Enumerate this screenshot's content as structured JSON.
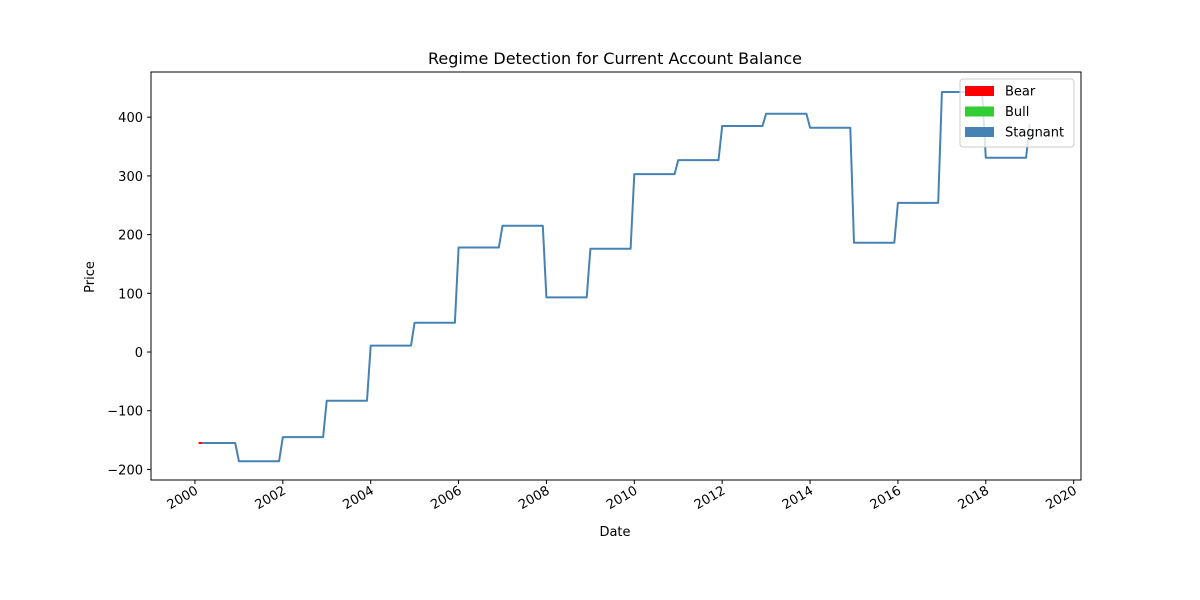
{
  "chart_data": {
    "type": "line",
    "title": "Regime Detection for Current Account Balance",
    "xlabel": "Date",
    "ylabel": "Price",
    "x_ticks": [
      "2000",
      "2002",
      "2004",
      "2006",
      "2008",
      "2010",
      "2012",
      "2014",
      "2016",
      "2018",
      "2020"
    ],
    "y_ticks": [
      -200,
      -100,
      0,
      100,
      200,
      300,
      400
    ],
    "xlim": [
      "1999-01",
      "2020-03"
    ],
    "ylim": [
      -218,
      477
    ],
    "grid": false,
    "legend_placement": "top-right",
    "legend": [
      {
        "name": "Bear",
        "color": "#ff0000"
      },
      {
        "name": "Bull",
        "color": "#32cd32"
      },
      {
        "name": "Stagnant",
        "color": "#4682b4"
      }
    ],
    "series": [
      {
        "name": "Bear",
        "color": "#ff0000",
        "points": [
          [
            "2000-02",
            -155
          ],
          [
            "2000-03",
            -155
          ]
        ]
      },
      {
        "name": "Stagnant",
        "color": "#4682b4",
        "points": [
          [
            "2000-03",
            -155
          ],
          [
            "2000-12",
            -155
          ],
          [
            "2001-01",
            -186
          ],
          [
            "2001-12",
            -186
          ],
          [
            "2002-01",
            -145
          ],
          [
            "2002-12",
            -145
          ],
          [
            "2003-01",
            -83
          ],
          [
            "2003-12",
            -83
          ],
          [
            "2004-01",
            11
          ],
          [
            "2004-12",
            11
          ],
          [
            "2005-01",
            50
          ],
          [
            "2005-12",
            50
          ],
          [
            "2006-01",
            178
          ],
          [
            "2006-12",
            178
          ],
          [
            "2007-01",
            215
          ],
          [
            "2007-12",
            215
          ],
          [
            "2008-01",
            93
          ],
          [
            "2008-12",
            93
          ],
          [
            "2009-01",
            176
          ],
          [
            "2009-12",
            176
          ],
          [
            "2010-01",
            303
          ],
          [
            "2010-12",
            303
          ],
          [
            "2011-01",
            327
          ],
          [
            "2011-12",
            327
          ],
          [
            "2012-01",
            385
          ],
          [
            "2012-12",
            385
          ],
          [
            "2013-01",
            406
          ],
          [
            "2013-12",
            406
          ],
          [
            "2014-01",
            382
          ],
          [
            "2014-12",
            382
          ],
          [
            "2015-01",
            186
          ],
          [
            "2015-12",
            186
          ],
          [
            "2016-01",
            254
          ],
          [
            "2016-12",
            254
          ],
          [
            "2017-01",
            443
          ],
          [
            "2017-12",
            443
          ],
          [
            "2018-01",
            331
          ],
          [
            "2018-12",
            331
          ],
          [
            "2019-01",
            388
          ]
        ]
      }
    ]
  }
}
